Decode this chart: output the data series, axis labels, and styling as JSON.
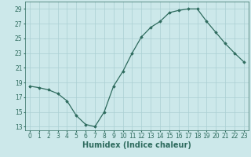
{
  "x": [
    0,
    1,
    2,
    3,
    4,
    5,
    6,
    7,
    8,
    9,
    10,
    11,
    12,
    13,
    14,
    15,
    16,
    17,
    18,
    19,
    20,
    21,
    22,
    23
  ],
  "y": [
    18.5,
    18.3,
    18.0,
    17.5,
    16.5,
    14.5,
    13.3,
    13.0,
    15.0,
    18.5,
    20.5,
    23.0,
    25.2,
    26.5,
    27.3,
    28.5,
    28.8,
    29.0,
    29.0,
    27.3,
    25.8,
    24.3,
    23.0,
    21.8
  ],
  "xlim": [
    -0.5,
    23.5
  ],
  "ylim": [
    12.5,
    30
  ],
  "yticks": [
    13,
    15,
    17,
    19,
    21,
    23,
    25,
    27,
    29
  ],
  "xticks": [
    0,
    1,
    2,
    3,
    4,
    5,
    6,
    7,
    8,
    9,
    10,
    11,
    12,
    13,
    14,
    15,
    16,
    17,
    18,
    19,
    20,
    21,
    22,
    23
  ],
  "xlabel": "Humidex (Indice chaleur)",
  "line_color": "#2e6b5e",
  "marker": "D",
  "marker_size": 1.8,
  "bg_color": "#cce8ea",
  "grid_color": "#aacfd2",
  "xlabel_fontsize": 7,
  "tick_fontsize": 5.5
}
